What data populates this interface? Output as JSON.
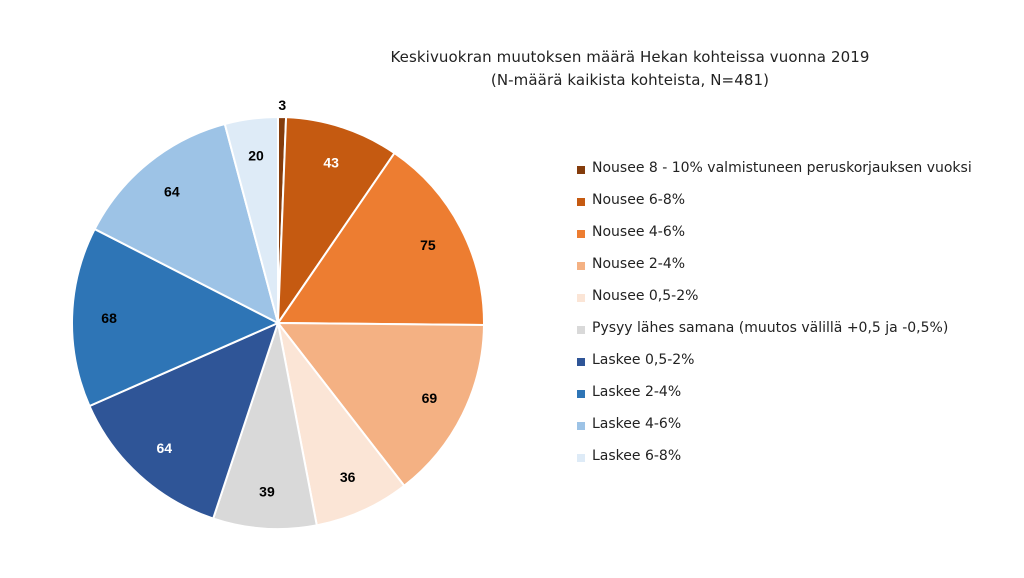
{
  "chart_data": {
    "type": "pie",
    "title": "Keskivuokran muutoksen määrä Hekan kohteissa vuonna 2019",
    "subtitle": "(N-määrä kaikista kohteista, N=481)",
    "categories": [
      "Nousee 8 - 10% valmistuneen peruskorjauksen vuoksi",
      "Nousee 6-8%",
      "Nousee 4-6%",
      "Nousee 2-4%",
      "Nousee 0,5-2%",
      "Pysyy lähes samana (muutos välillä +0,5 ja -0,5%)",
      "Laskee 0,5-2%",
      "Laskee 2-4%",
      "Laskee 4-6%",
      "Laskee 6-8%"
    ],
    "values": [
      3,
      43,
      75,
      69,
      36,
      39,
      64,
      68,
      64,
      20
    ],
    "colors": [
      "#843c0c",
      "#c55a11",
      "#ed7d31",
      "#f4b183",
      "#fbe5d6",
      "#d9d9d9",
      "#2f5597",
      "#2e75b6",
      "#9dc3e6",
      "#deebf7"
    ],
    "label_colors": [
      "#000000",
      "#ffffff",
      "#000000",
      "#000000",
      "#000000",
      "#000000",
      "#ffffff",
      "#000000",
      "#000000",
      "#000000"
    ],
    "legend_position": "right",
    "start_angle": "top, clockwise"
  }
}
